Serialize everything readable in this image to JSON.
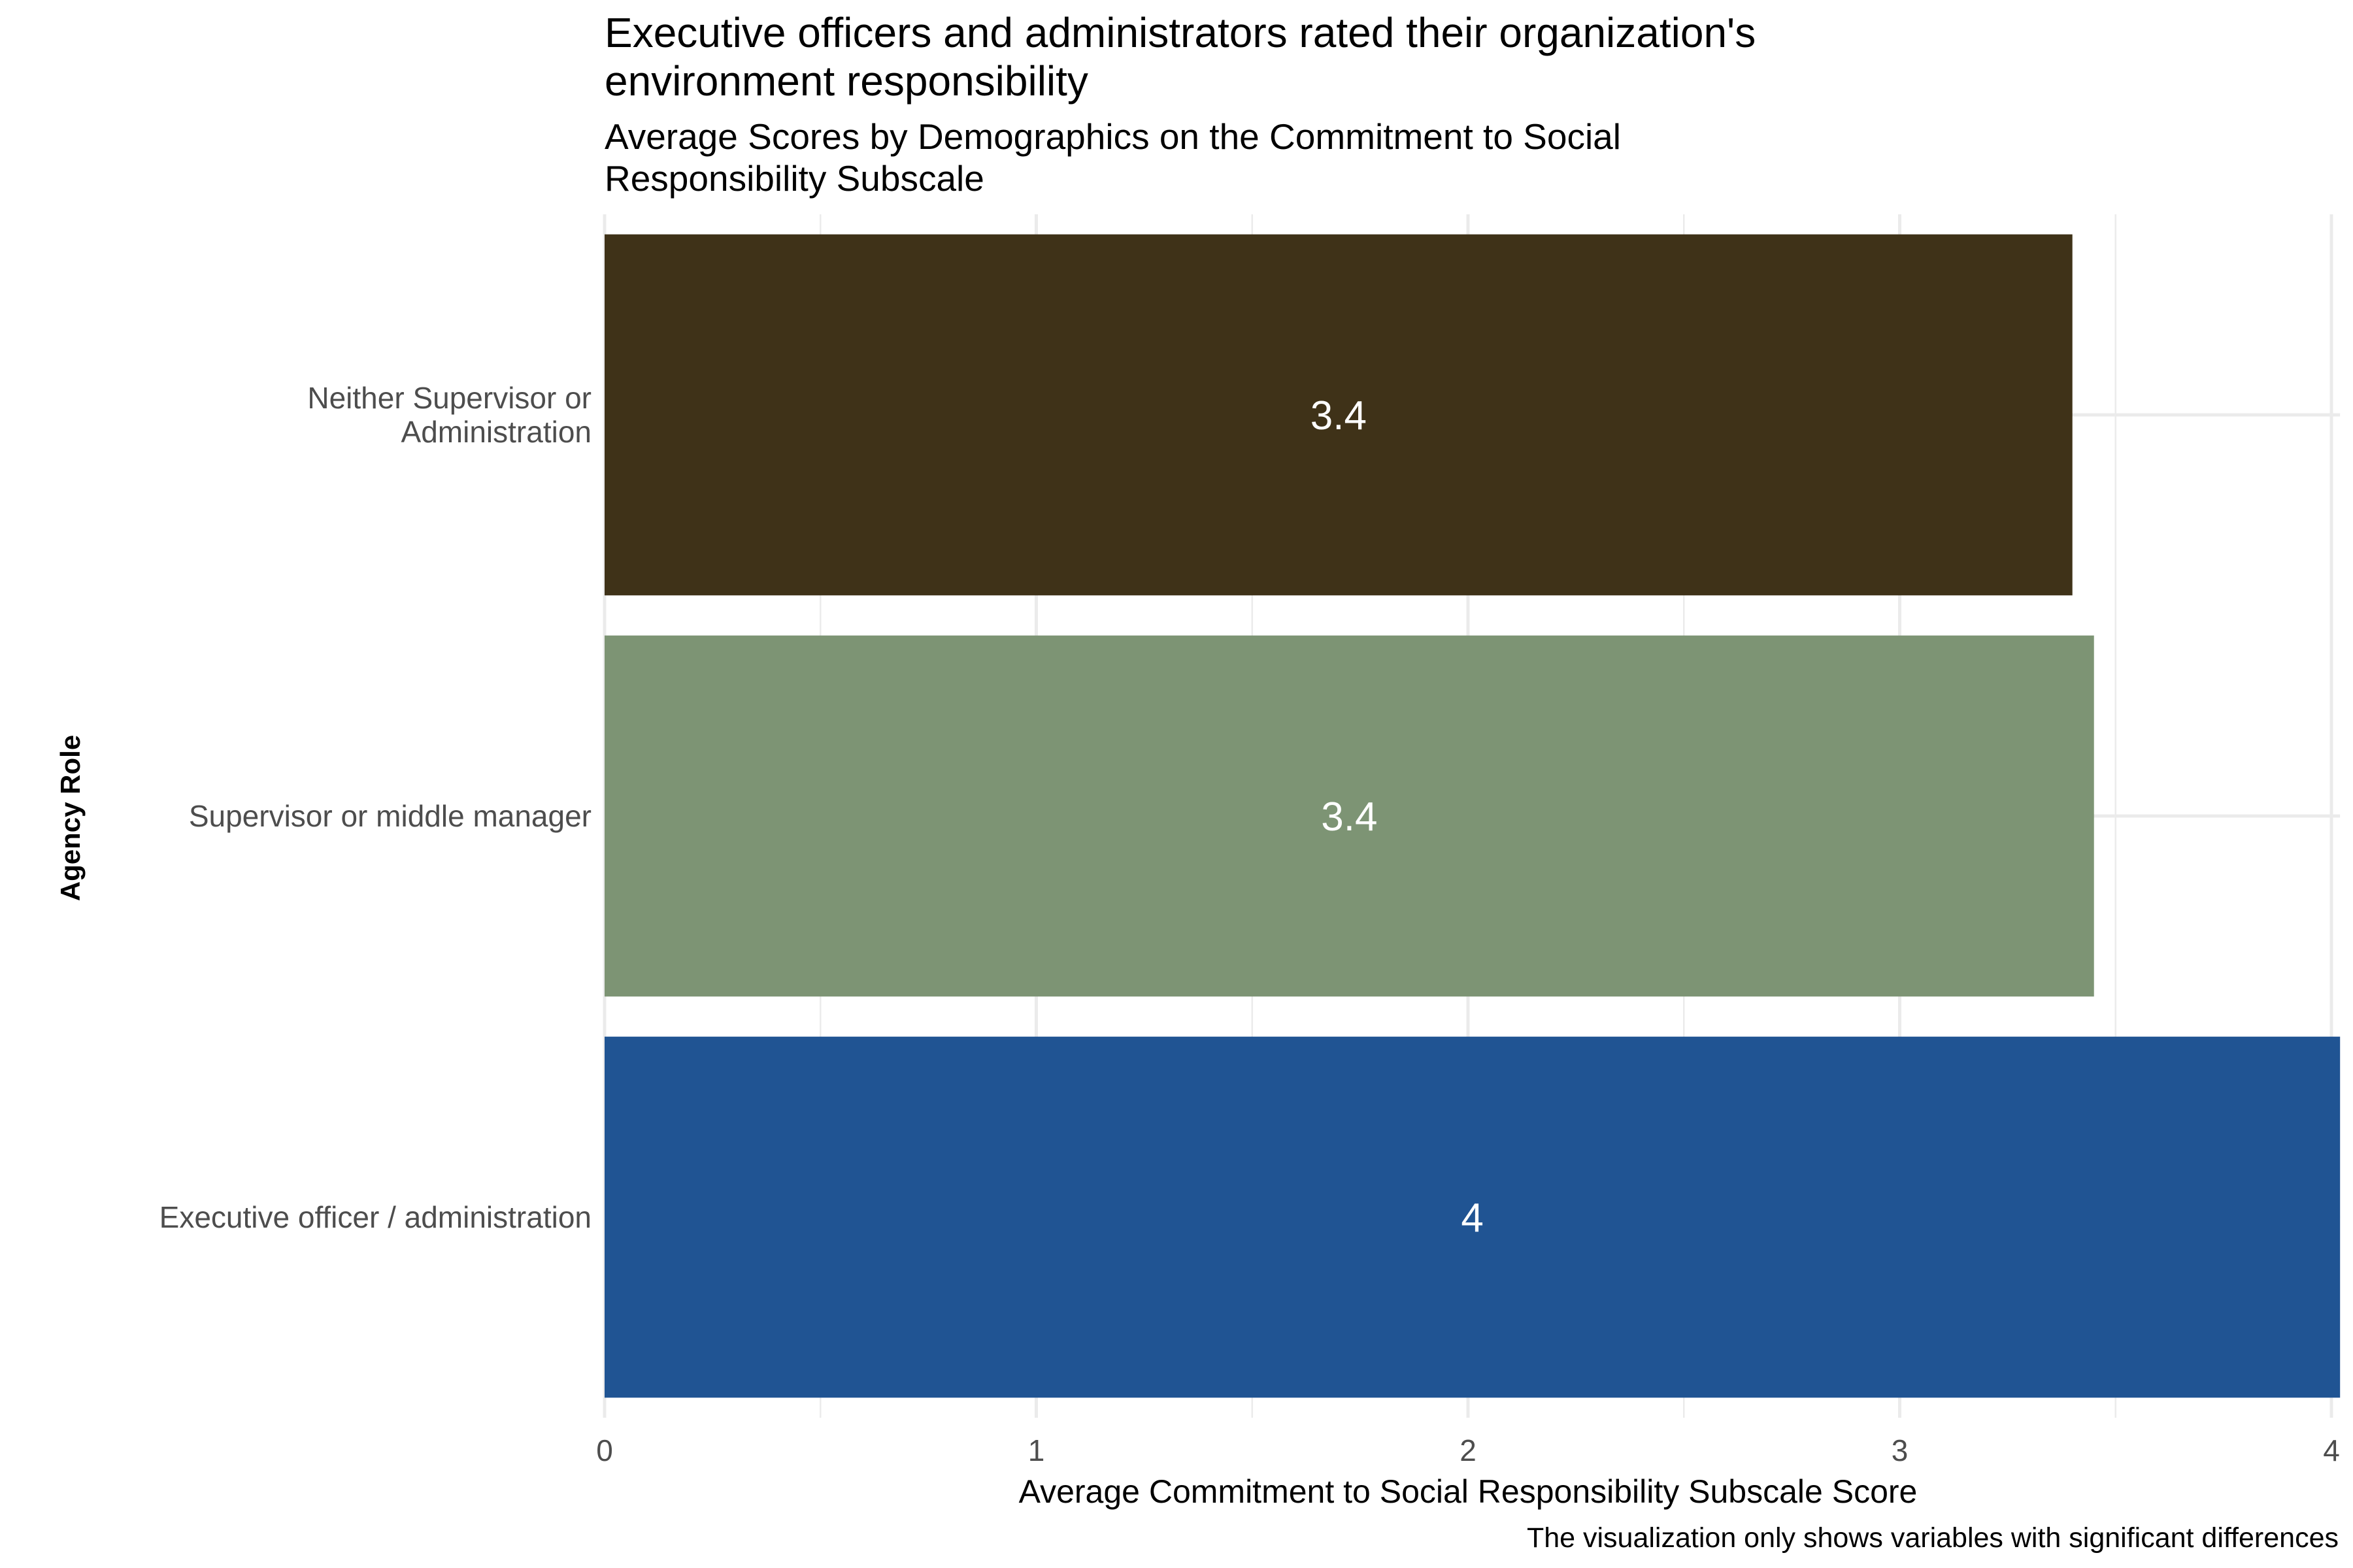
{
  "chart_data": {
    "type": "bar",
    "orientation": "horizontal",
    "title": "Executive officers and administrators rated their organization's environment responsibility",
    "title_lines": [
      "Executive officers and administrators rated their organization's",
      "environment responsibility"
    ],
    "subtitle": "Average Scores by Demographics on the Commitment to Social Responsibility Subscale",
    "subtitle_lines": [
      "Average Scores by Demographics on the Commitment to Social",
      "Responsibility Subscale"
    ],
    "xlabel": "Average Commitment to Social Responsibility Subscale Score",
    "ylabel": "Agency Role",
    "caption": "The visualization only shows variables with significant differences",
    "xlim": [
      0,
      4.02
    ],
    "x_ticks": [
      "0",
      "1",
      "2",
      "3",
      "4"
    ],
    "grid": true,
    "legend": "none",
    "categories": [
      {
        "label_lines": [
          "Neither Supervisor or",
          "Administration"
        ],
        "label": "Neither Supervisor or Administration",
        "value": 3.4,
        "data_label": "3.4",
        "color": "#3F3218"
      },
      {
        "label_lines": [
          "Supervisor or middle manager"
        ],
        "label": "Supervisor or middle manager",
        "value": 3.45,
        "data_label": "3.4",
        "color": "#7D9474"
      },
      {
        "label_lines": [
          "Executive officer / administration"
        ],
        "label": "Executive officer / administration",
        "value": 4.02,
        "data_label": "4",
        "color": "#205493"
      }
    ]
  }
}
